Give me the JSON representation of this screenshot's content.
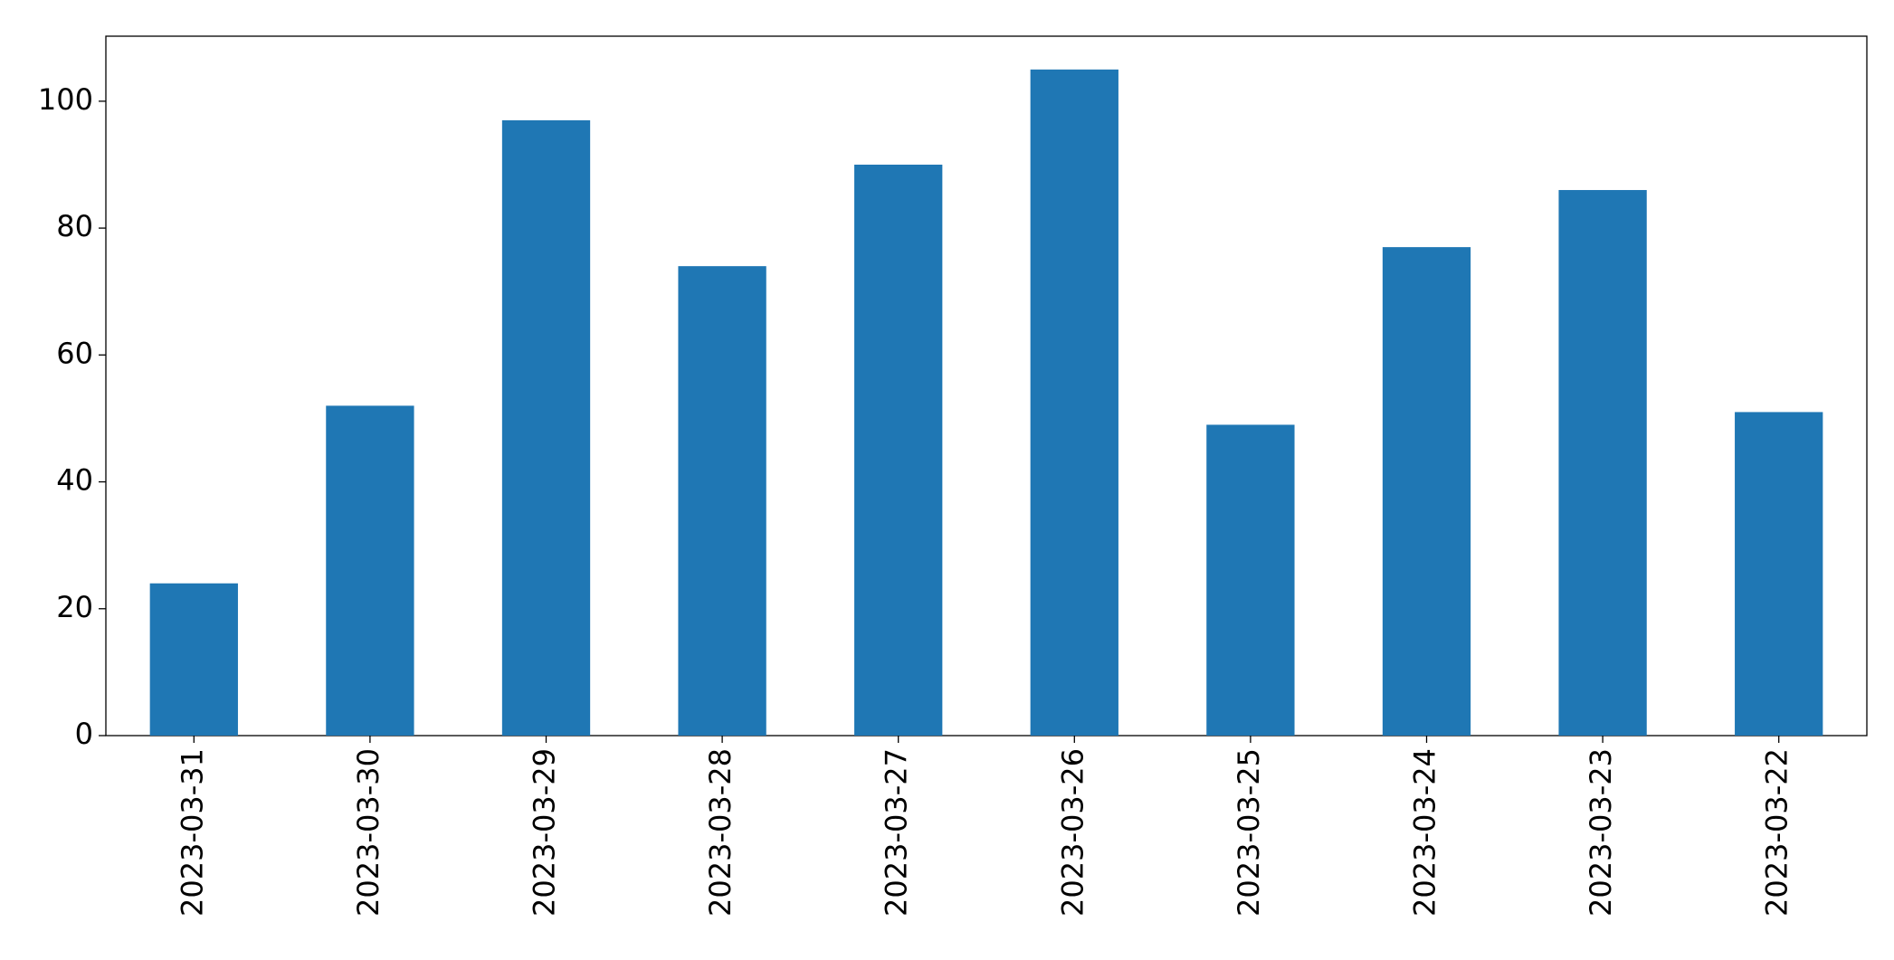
{
  "chart_data": {
    "type": "bar",
    "categories": [
      "2023-03-31",
      "2023-03-30",
      "2023-03-29",
      "2023-03-28",
      "2023-03-27",
      "2023-03-26",
      "2023-03-25",
      "2023-03-24",
      "2023-03-23",
      "2023-03-22"
    ],
    "values": [
      24,
      52,
      97,
      74,
      90,
      105,
      49,
      77,
      86,
      51
    ],
    "color": "#1f77b4",
    "ylim": [
      0,
      110.25
    ],
    "yticks": [
      0,
      20,
      40,
      60,
      80,
      100
    ],
    "grid": false
  }
}
